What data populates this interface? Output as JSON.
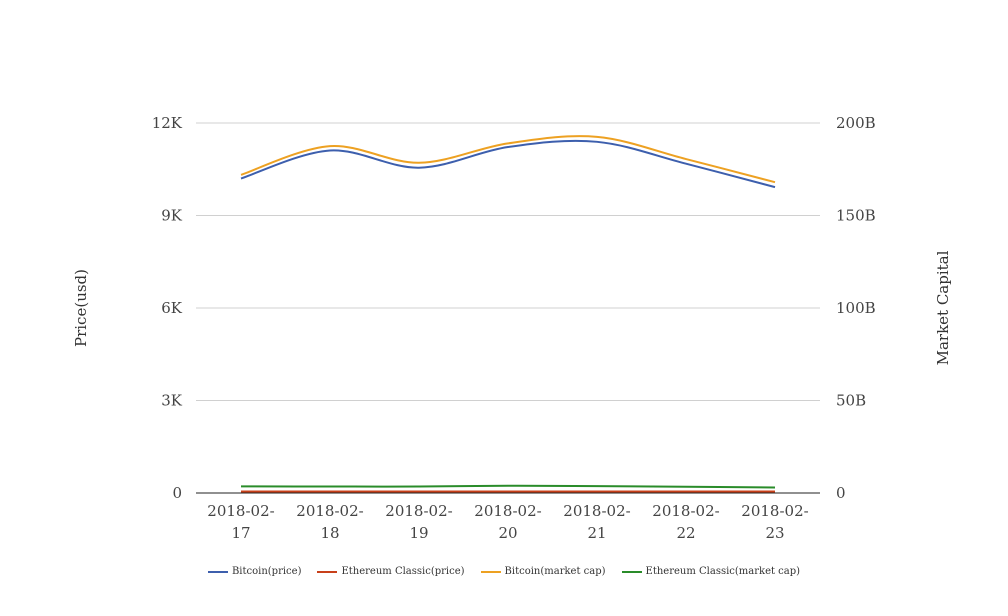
{
  "chart_data": {
    "type": "line",
    "categories": [
      [
        "2018-02-",
        "17"
      ],
      [
        "2018-02-",
        "18"
      ],
      [
        "2018-02-",
        "19"
      ],
      [
        "2018-02-",
        "20"
      ],
      [
        "2018-02-",
        "21"
      ],
      [
        "2018-02-",
        "22"
      ],
      [
        "2018-02-",
        "23"
      ]
    ],
    "y_left": {
      "label": "Price(usd)",
      "min": 0,
      "max": 12000,
      "ticks": [
        0,
        3000,
        6000,
        9000,
        12000
      ],
      "tick_labels": [
        "0",
        "3K",
        "6K",
        "9K",
        "12K"
      ]
    },
    "y_right": {
      "label": "Market Capital",
      "min": 0,
      "max": 200000000000,
      "ticks": [
        0,
        50000000000,
        100000000000,
        150000000000,
        200000000000
      ],
      "tick_labels": [
        "0",
        "50B",
        "100B",
        "150B",
        "200B"
      ]
    },
    "grid": true,
    "legend_position": "bottom",
    "series": [
      {
        "name": "Bitcoin(price)",
        "axis": "left",
        "color": "#3d5fad",
        "values": [
          10200,
          11110,
          10550,
          11220,
          11390,
          10680,
          9920
        ]
      },
      {
        "name": "Ethereum Classic(price)",
        "axis": "right",
        "color": "#c8401a",
        "values": [
          800000000,
          800000000,
          800000000,
          800000000,
          800000000,
          800000000,
          800000000
        ]
      },
      {
        "name": "Bitcoin(market cap)",
        "axis": "right",
        "color": "#eda122",
        "values": [
          172000000000,
          187500000000,
          178500000000,
          189000000000,
          192500000000,
          180500000000,
          168000000000
        ]
      },
      {
        "name": "Ethereum Classic(market cap)",
        "axis": "right",
        "color": "#2a8c2a",
        "values": [
          3600000000,
          3500000000,
          3500000000,
          3900000000,
          3700000000,
          3400000000,
          3000000000
        ]
      }
    ]
  }
}
